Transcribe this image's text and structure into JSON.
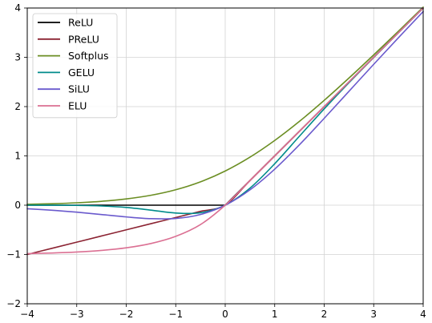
{
  "chart_data": {
    "type": "line",
    "title": "",
    "xlabel": "",
    "ylabel": "",
    "xlim": [
      -4,
      4
    ],
    "ylim": [
      -2,
      4
    ],
    "xticks": [
      -4,
      -3,
      -2,
      -1,
      0,
      1,
      2,
      3,
      4
    ],
    "yticks": [
      -2,
      -1,
      0,
      1,
      2,
      3,
      4
    ],
    "grid": true,
    "legend_position": "top-left",
    "x": [
      -4,
      -3.5,
      -3,
      -2.5,
      -2,
      -1.5,
      -1,
      -0.5,
      0,
      0.5,
      1,
      1.5,
      2,
      2.5,
      3,
      3.5,
      4
    ],
    "series": [
      {
        "name": "ReLU",
        "color": "#000000",
        "values": [
          0,
          0,
          0,
          0,
          0,
          0,
          0,
          0,
          0,
          0.5,
          1,
          1.5,
          2,
          2.5,
          3,
          3.5,
          4
        ]
      },
      {
        "name": "PReLU",
        "color": "#8b2332",
        "values": [
          -1,
          -0.875,
          -0.75,
          -0.625,
          -0.5,
          -0.375,
          -0.25,
          -0.125,
          0,
          0.5,
          1,
          1.5,
          2,
          2.5,
          3,
          3.5,
          4
        ]
      },
      {
        "name": "Softplus",
        "color": "#6b8e23",
        "values": [
          0.018,
          0.03,
          0.049,
          0.079,
          0.127,
          0.201,
          0.313,
          0.474,
          0.693,
          0.974,
          1.313,
          1.701,
          2.127,
          2.579,
          3.049,
          3.53,
          4.018
        ]
      },
      {
        "name": "GELU",
        "color": "#008b8b",
        "values": [
          0,
          -0.001,
          -0.004,
          -0.016,
          -0.046,
          -0.1,
          -0.159,
          -0.154,
          0,
          0.346,
          0.841,
          1.4,
          1.954,
          2.484,
          2.996,
          3.499,
          4
        ]
      },
      {
        "name": "SiLU",
        "color": "#6a5acd",
        "values": [
          -0.072,
          -0.102,
          -0.142,
          -0.19,
          -0.238,
          -0.274,
          -0.269,
          -0.189,
          0,
          0.311,
          0.731,
          1.226,
          1.762,
          2.31,
          2.858,
          3.398,
          3.928
        ]
      },
      {
        "name": "ELU",
        "color": "#db7093",
        "values": [
          -0.982,
          -0.97,
          -0.95,
          -0.918,
          -0.865,
          -0.777,
          -0.632,
          -0.393,
          0,
          0.5,
          1,
          1.5,
          2,
          2.5,
          3,
          3.5,
          4
        ]
      }
    ]
  }
}
